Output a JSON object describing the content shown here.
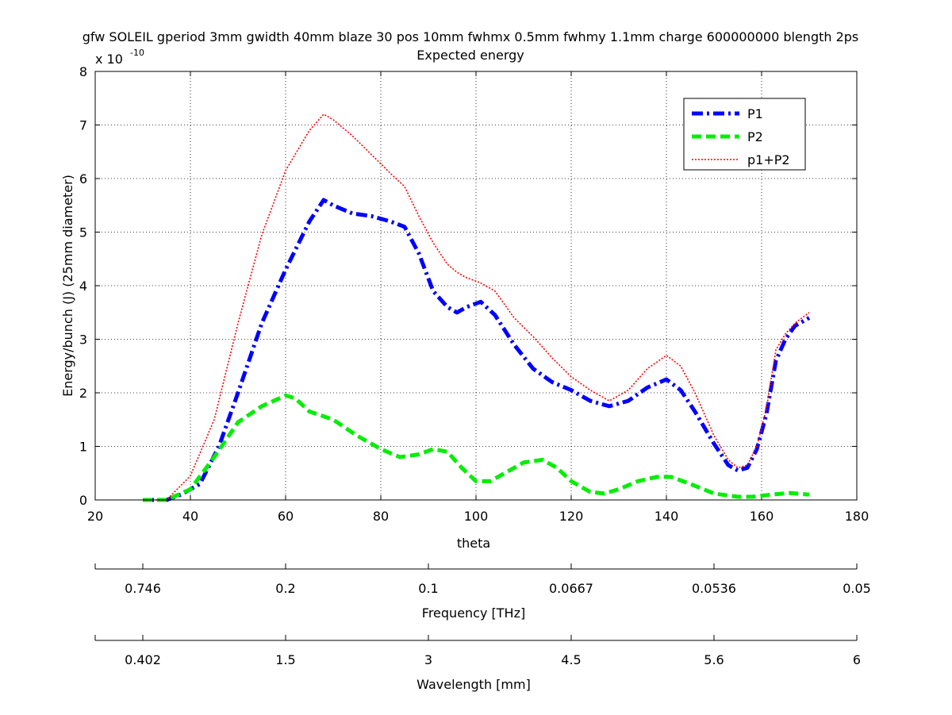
{
  "chart_data": {
    "type": "line",
    "title_line1": "gfw SOLEIL gperiod 3mm gwidth 40mm blaze 30 pos 10mm fwhmx 0.5mm fwhmy 1.1mm charge 600000000 blength 2ps",
    "title_line2": "Expected energy",
    "xlabel": "theta",
    "ylabel": "Energy/bunch (J) (25mm diameter)",
    "y_multiplier": {
      "base": "x 10",
      "exponent": "-10"
    },
    "xlim": [
      20,
      180
    ],
    "ylim": [
      0,
      8
    ],
    "x_ticks": [
      "20",
      "40",
      "60",
      "80",
      "100",
      "120",
      "140",
      "160",
      "180"
    ],
    "y_ticks": [
      "0",
      "1",
      "2",
      "3",
      "4",
      "5",
      "6",
      "7",
      "8"
    ],
    "grid": true,
    "legend_position": "top-right",
    "series": [
      {
        "name": "P1",
        "color": "#0000ff",
        "style": "dash-dot",
        "x": [
          30,
          35,
          38,
          42,
          46,
          50,
          55,
          60,
          65,
          68,
          70,
          74,
          78,
          82,
          85,
          88,
          91,
          94,
          96,
          98,
          101,
          104,
          108,
          112,
          116,
          120,
          124,
          128,
          132,
          136,
          140,
          143,
          146,
          150,
          153,
          155,
          157,
          159,
          161,
          163,
          165,
          167,
          170
        ],
        "y": [
          0,
          0,
          0.1,
          0.3,
          1.0,
          2.0,
          3.3,
          4.3,
          5.2,
          5.6,
          5.5,
          5.35,
          5.3,
          5.2,
          5.1,
          4.6,
          3.9,
          3.6,
          3.5,
          3.6,
          3.7,
          3.45,
          2.9,
          2.45,
          2.2,
          2.05,
          1.85,
          1.75,
          1.85,
          2.1,
          2.25,
          2.05,
          1.65,
          1.05,
          0.65,
          0.55,
          0.6,
          0.95,
          1.6,
          2.6,
          3.0,
          3.25,
          3.4
        ]
      },
      {
        "name": "P2",
        "color": "#00ee00",
        "style": "dashed",
        "x": [
          30,
          35,
          40,
          45,
          50,
          55,
          60,
          62,
          65,
          70,
          75,
          80,
          84,
          88,
          91,
          94,
          97,
          100,
          103,
          106,
          110,
          114,
          117,
          120,
          124,
          127,
          130,
          134,
          138,
          141,
          145,
          150,
          155,
          158,
          162,
          166,
          170
        ],
        "y": [
          0,
          0,
          0.2,
          0.8,
          1.45,
          1.75,
          1.95,
          1.9,
          1.65,
          1.5,
          1.2,
          0.95,
          0.8,
          0.85,
          0.95,
          0.9,
          0.6,
          0.35,
          0.35,
          0.5,
          0.7,
          0.75,
          0.6,
          0.35,
          0.15,
          0.12,
          0.2,
          0.35,
          0.43,
          0.43,
          0.3,
          0.12,
          0.06,
          0.06,
          0.1,
          0.13,
          0.1
        ]
      },
      {
        "name": "p1+P2",
        "color": "#ff0000",
        "style": "dotted",
        "x": [
          30,
          35,
          40,
          45,
          50,
          55,
          60,
          65,
          68,
          70,
          74,
          78,
          82,
          85,
          88,
          91,
          94,
          96,
          98,
          101,
          104,
          108,
          112,
          116,
          120,
          124,
          128,
          132,
          136,
          140,
          143,
          146,
          150,
          153,
          155,
          157,
          159,
          161,
          163,
          165,
          167,
          170
        ],
        "y": [
          0,
          0,
          0.45,
          1.5,
          3.3,
          4.95,
          6.15,
          6.9,
          7.2,
          7.1,
          6.8,
          6.45,
          6.1,
          5.85,
          5.3,
          4.8,
          4.4,
          4.25,
          4.15,
          4.05,
          3.9,
          3.4,
          3.05,
          2.65,
          2.3,
          2.05,
          1.85,
          2.05,
          2.45,
          2.7,
          2.5,
          2.0,
          1.2,
          0.75,
          0.6,
          0.65,
          1.0,
          1.7,
          2.8,
          3.1,
          3.3,
          3.5
        ]
      }
    ],
    "secondary_axes": [
      {
        "label": "Frequency [THz]",
        "tick_labels": [
          "0.746",
          "0.2",
          "0.1",
          "0.0667",
          "0.0536",
          "0.05"
        ],
        "tick_theta": [
          30,
          60,
          90,
          120,
          150,
          180
        ]
      },
      {
        "label": "Wavelength [mm]",
        "tick_labels": [
          "0.402",
          "1.5",
          "3",
          "4.5",
          "5.6",
          "6"
        ],
        "tick_theta": [
          30,
          60,
          90,
          120,
          150,
          180
        ]
      }
    ]
  }
}
